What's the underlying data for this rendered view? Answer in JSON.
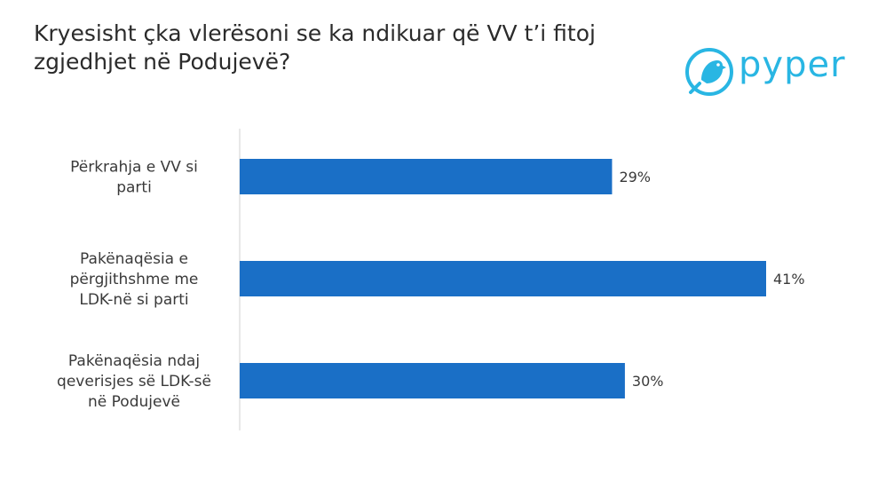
{
  "title": "Kryesisht çka vlerësoni se ka ndikuar që VV t’i fitoj zgjedhjet në Podujevë?",
  "logo": {
    "text": "pyper",
    "icon": "bird-icon",
    "color": "#29b6e3"
  },
  "chart_data": {
    "type": "bar",
    "orientation": "horizontal",
    "categories": [
      [
        "Përkrahja e VV si",
        "parti"
      ],
      [
        "Pakënaqësia e",
        "përgjithshme me",
        "LDK-në si parti"
      ],
      [
        "Pakënaqësia ndaj",
        "qeverisjes së LDK-së",
        "në Podujevë"
      ]
    ],
    "values": [
      29,
      41,
      30
    ],
    "value_labels": [
      "29%",
      "41%",
      "30%"
    ],
    "bar_color": "#1a6fc6",
    "xlim": [
      0,
      41
    ],
    "grid": false,
    "legend": "none"
  }
}
